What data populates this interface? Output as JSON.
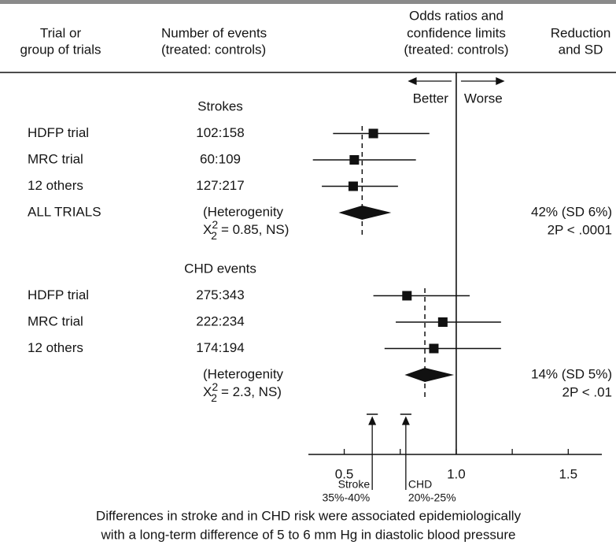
{
  "chart_data": {
    "type": "forest",
    "column_headers": {
      "trial": [
        "Trial or",
        "group of trials"
      ],
      "events": [
        "Number of events",
        "(treated: controls)"
      ],
      "ratio": [
        "Odds ratios and",
        "confidence limits",
        "(treated: controls)"
      ],
      "reduction": [
        "Reduction",
        "and SD"
      ]
    },
    "direction_labels": [
      "Better",
      "Worse"
    ],
    "groups": [
      {
        "name": "Strokes",
        "trials": [
          {
            "label": "HDFP trial",
            "events": "102:158",
            "estimate": 0.63,
            "ci": [
              0.45,
              0.88
            ]
          },
          {
            "label": "MRC trial",
            "events": "60:109",
            "estimate": 0.545,
            "ci": [
              0.36,
              0.82
            ]
          },
          {
            "label": "12 others",
            "events": "127:217",
            "estimate": 0.54,
            "ci": [
              0.4,
              0.74
            ]
          }
        ],
        "summary": {
          "label": "ALL TRIALS",
          "heterogeneity": {
            "open": "(Heterogenity",
            "symbol": "X",
            "sup": "2",
            "sub": "2",
            "rest": "= 0.85, NS)"
          },
          "estimate": 0.58,
          "ci": [
            0.475,
            0.71
          ],
          "reduction": "42% (SD 6%)",
          "p": "2P < .0001"
        }
      },
      {
        "name": "CHD events",
        "trials": [
          {
            "label": "HDFP trial",
            "events": "275:343",
            "estimate": 0.78,
            "ci": [
              0.63,
              1.06
            ]
          },
          {
            "label": "MRC trial",
            "events": "222:234",
            "estimate": 0.94,
            "ci": [
              0.73,
              1.2
            ]
          },
          {
            "label": "12 others",
            "events": "174:194",
            "estimate": 0.9,
            "ci": [
              0.68,
              1.2
            ]
          }
        ],
        "summary": {
          "heterogeneity": {
            "open": "(Heterogenity",
            "symbol": "X",
            "sup": "2",
            "sub": "2",
            "rest": "= 2.3, NS)"
          },
          "estimate": 0.86,
          "ci": [
            0.77,
            0.99
          ],
          "reduction": "14% (SD 5%)",
          "p": "2P < .01"
        }
      }
    ],
    "reference_line": 1,
    "xlim": [
      0.34,
      1.65
    ],
    "xticks": [
      0.5,
      {
        "value": 1,
        "label": "1.0"
      },
      1.5
    ],
    "xminorticks": [
      0.75,
      1.25
    ],
    "annotations": [
      {
        "name": "Stroke",
        "label": "35%-40%",
        "range": [
          0.6,
          0.65
        ]
      },
      {
        "name": "CHD",
        "label": "20%-25%",
        "range": [
          0.75,
          0.8
        ]
      }
    ],
    "caption": [
      "Differences in stroke and in CHD risk were associated epidemiologically",
      "with a long-term difference of 5 to 6 mm Hg in diastolic blood pressure"
    ]
  }
}
